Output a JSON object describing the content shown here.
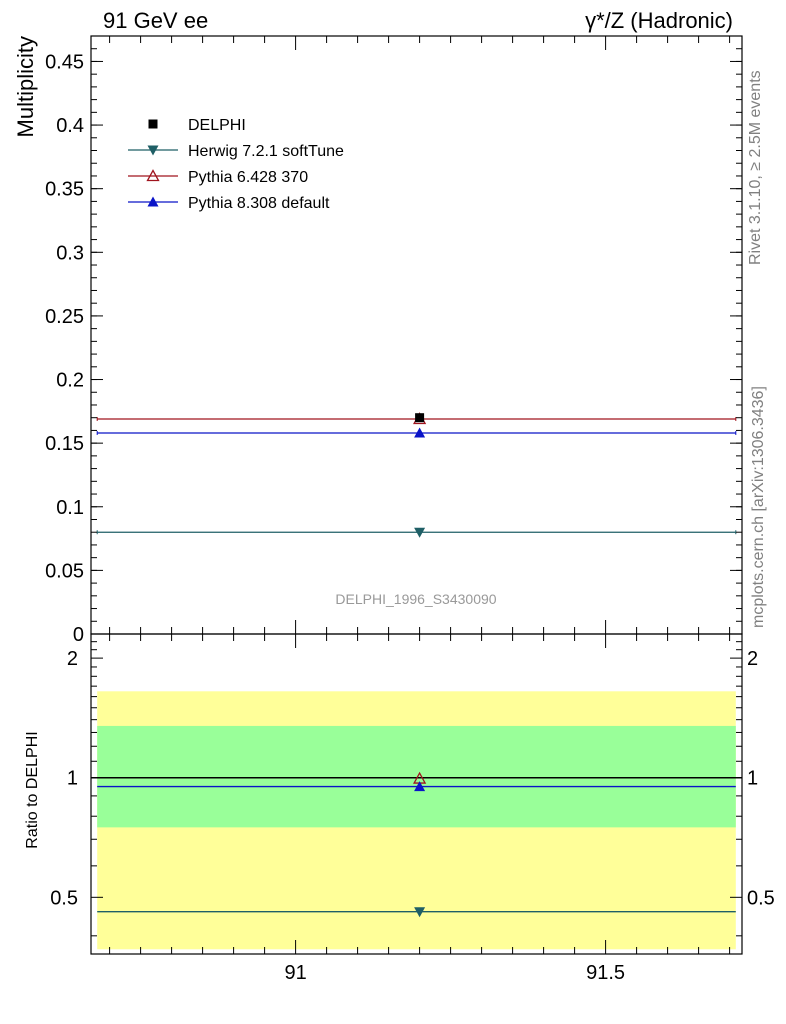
{
  "header": {
    "left_label": "91 GeV ee",
    "right_label": "γ*/Z (Hadronic)"
  },
  "side_labels": {
    "rivet": "Rivet 3.1.10, ≥ 2.5M events",
    "mcplots": "mcplots.cern.ch [arXiv:1306.3436]"
  },
  "watermark": "DELPHI_1996_S3430090",
  "chart_data": [
    {
      "type": "scatter",
      "panel": "main",
      "ylabel": "Multiplicity",
      "ylim": [
        0,
        0.47
      ],
      "xlim": [
        90.67,
        91.72
      ],
      "yticks": [
        0,
        0.05,
        0.1,
        0.15,
        0.2,
        0.25,
        0.3,
        0.35,
        0.4,
        0.45
      ],
      "ytick_labels": [
        "0",
        "0.05",
        "0.1",
        "0.15",
        "0.2",
        "0.25",
        "0.3",
        "0.35",
        "0.4",
        "0.45"
      ],
      "legend_position": "top-left",
      "series": [
        {
          "name": "DELPHI",
          "x": 91.2,
          "x_range": [
            90.68,
            91.71
          ],
          "y": 0.17,
          "marker": "square",
          "color": "#000000"
        },
        {
          "name": "Herwig 7.2.1 softTune",
          "x": 91.2,
          "x_range": [
            90.68,
            91.71
          ],
          "y": 0.08,
          "marker": "triangle-down",
          "color": "#1f5f66"
        },
        {
          "name": "Pythia 6.428 370",
          "x": 91.2,
          "x_range": [
            90.68,
            91.71
          ],
          "y": 0.169,
          "marker": "triangle-up-open",
          "color": "#a0141e"
        },
        {
          "name": "Pythia 8.308 default",
          "x": 91.2,
          "x_range": [
            90.68,
            91.71
          ],
          "y": 0.158,
          "marker": "triangle-up",
          "color": "#0a14c8"
        }
      ]
    },
    {
      "type": "scatter",
      "panel": "ratio",
      "ylabel": "Ratio to DELPHI",
      "ylim": [
        0.36,
        2.3
      ],
      "log_y": true,
      "xlim": [
        90.67,
        91.72
      ],
      "yticks": [
        0.5,
        1,
        2
      ],
      "ytick_labels": [
        "0.5",
        "1",
        "2"
      ],
      "xticks": [
        91,
        91.5
      ],
      "xtick_labels": [
        "91",
        "91.5"
      ],
      "bands": [
        {
          "name": "outer",
          "low": 0.37,
          "high": 1.65,
          "color": "#ffff99"
        },
        {
          "name": "inner",
          "low": 0.75,
          "high": 1.35,
          "color": "#99ff99"
        }
      ],
      "reference": 1.0,
      "series": [
        {
          "name": "Herwig 7.2.1 softTune",
          "y": 0.46,
          "color": "#1f5f66",
          "marker": "triangle-down"
        },
        {
          "name": "Pythia 6.428 370",
          "y": 0.995,
          "color": "#a0141e",
          "marker": "triangle-up-open"
        },
        {
          "name": "Pythia 8.308 default",
          "y": 0.95,
          "color": "#0a14c8",
          "marker": "triangle-up"
        }
      ]
    }
  ]
}
